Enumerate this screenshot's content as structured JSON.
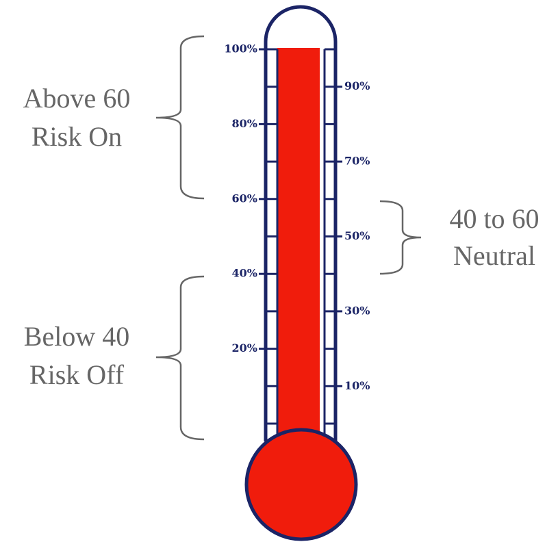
{
  "thermometer": {
    "left_ticks": [
      "100%",
      "80%",
      "60%",
      "40%",
      "20%"
    ],
    "right_ticks": [
      "90%",
      "70%",
      "50%",
      "30%",
      "10%"
    ],
    "zones": [
      {
        "line1": "Above 60",
        "line2": "Risk On"
      },
      {
        "line1": "40 to 60",
        "line2": "Neutral"
      },
      {
        "line1": "Below 40",
        "line2": "Risk Off"
      }
    ]
  }
}
